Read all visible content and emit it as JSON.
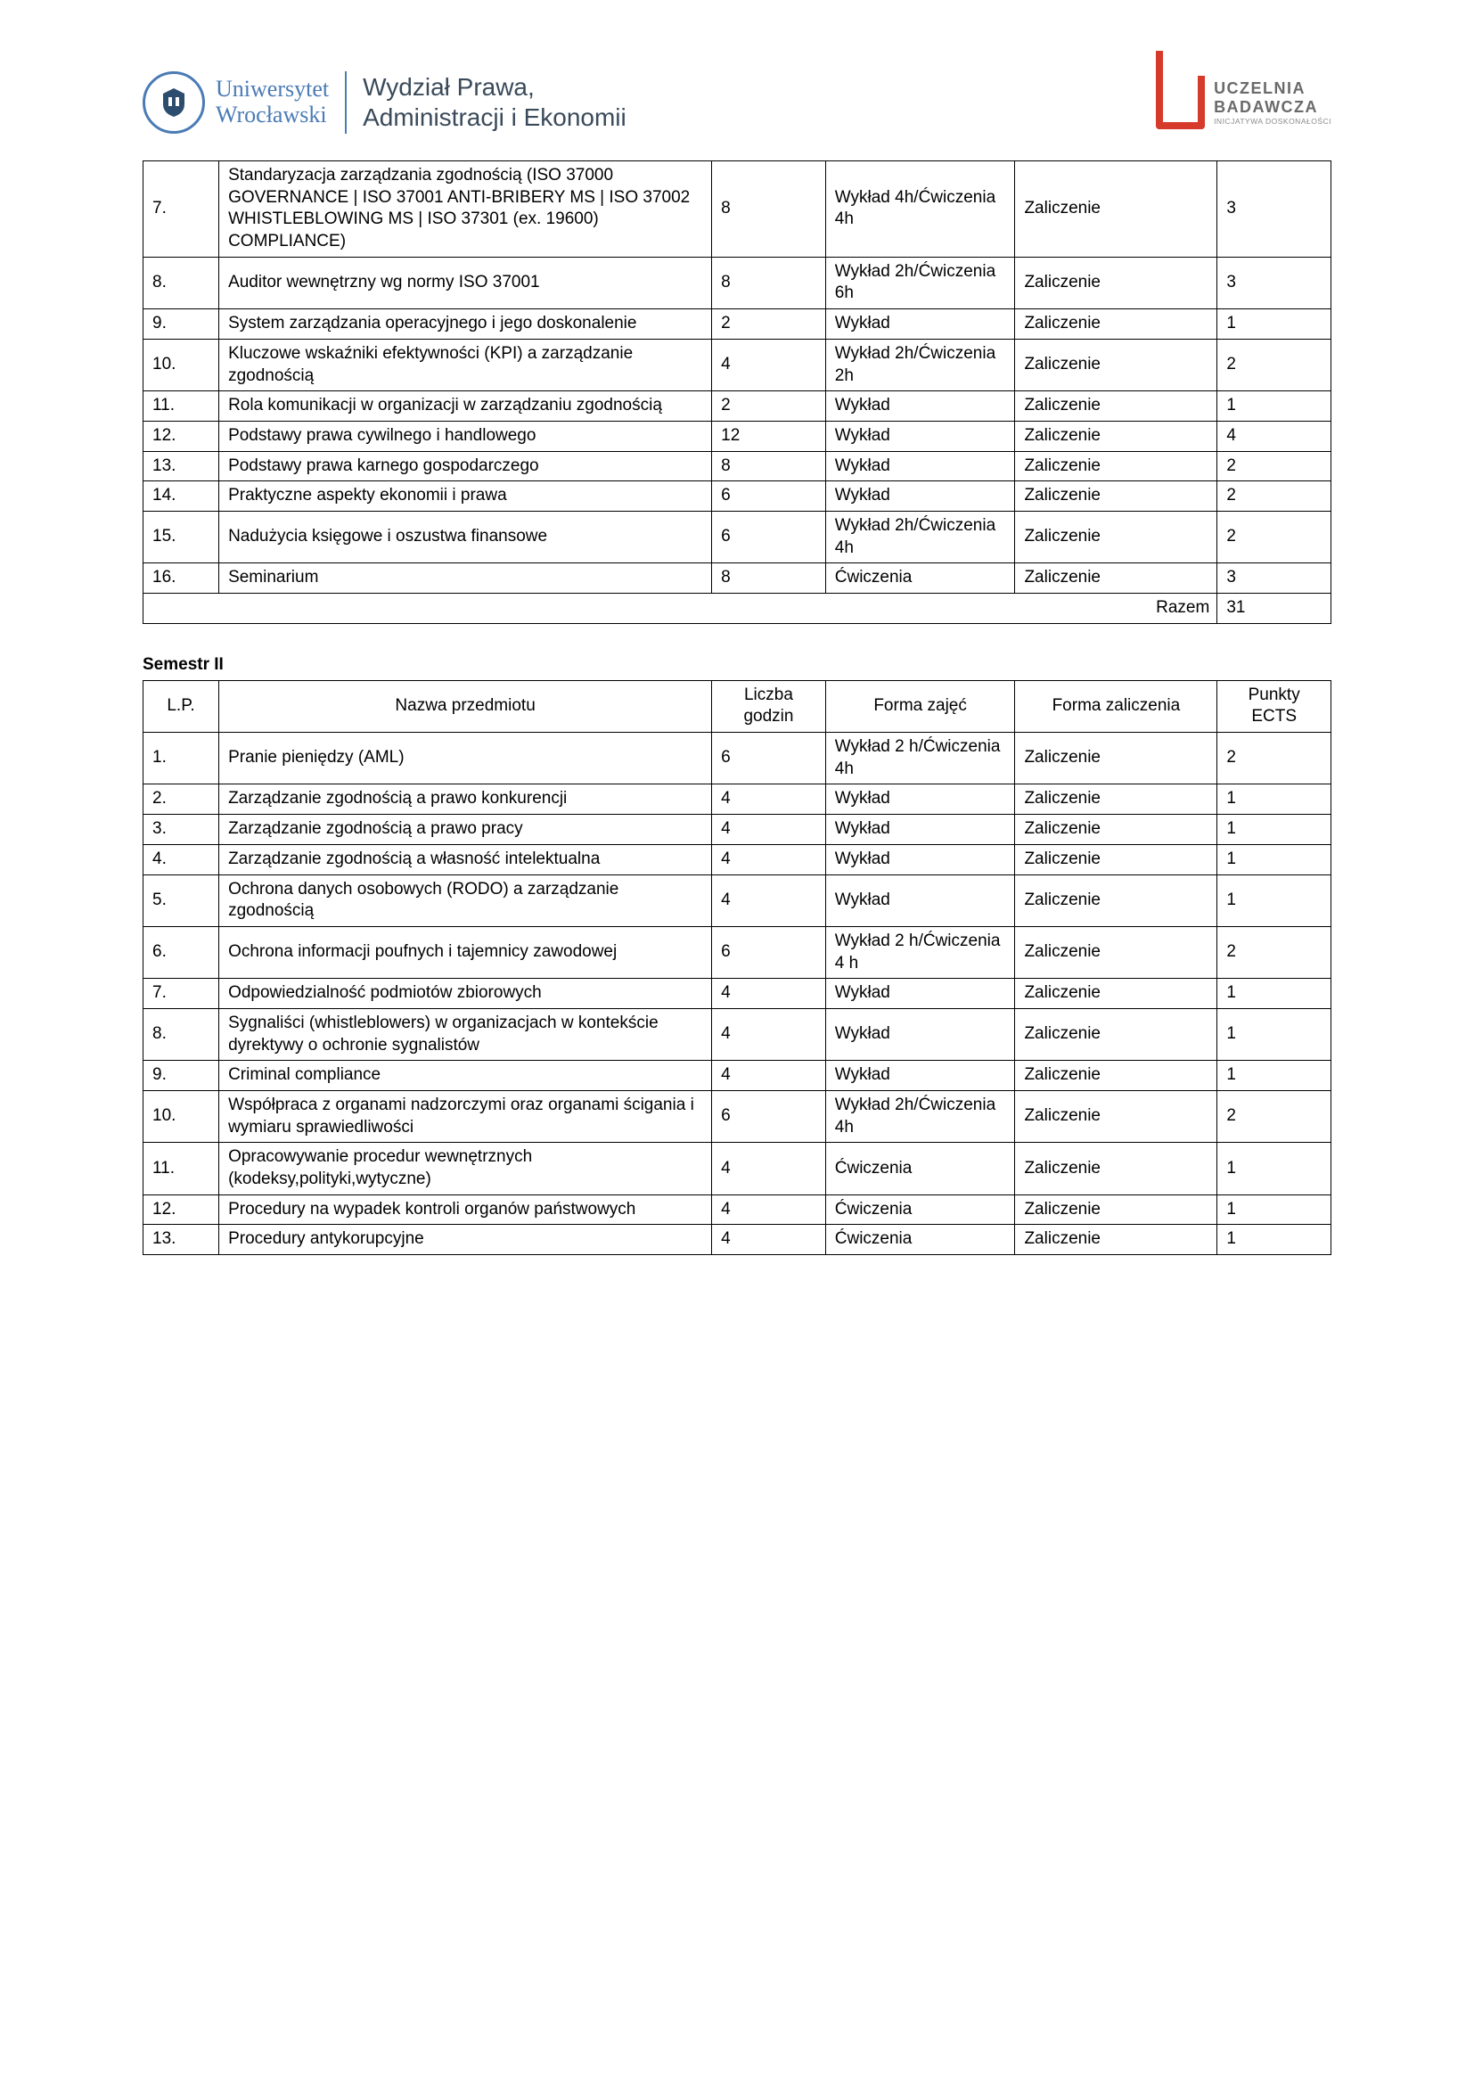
{
  "header": {
    "uni_line1": "Uniwersytet",
    "uni_line2": "Wrocławski",
    "dept_line1": "Wydział Prawa,",
    "dept_line2": "Administracji i Ekonomii",
    "badge_l1": "UCZELNIA",
    "badge_l2": "BADAWCZA",
    "badge_l3": "INICJATYWA DOSKONAŁOŚCI"
  },
  "table1": {
    "rows": [
      {
        "lp": "7.",
        "name": "Standaryzacja zarządzania zgodnością (ISO 37000 GOVERNANCE | ISO 37001 ANTI-BRIBERY MS | ISO 37002 WHISTLEBLOWING MS | ISO 37301 (ex. 19600) COMPLIANCE)",
        "godz": "8",
        "forma": "Wykład 4h/Ćwiczenia 4h",
        "zal": "Zaliczenie",
        "ects": "3"
      },
      {
        "lp": "8.",
        "name": "Auditor wewnętrzny wg normy ISO 37001",
        "godz": "8",
        "forma": "Wykład 2h/Ćwiczenia 6h",
        "zal": "Zaliczenie",
        "ects": "3"
      },
      {
        "lp": "9.",
        "name": "System zarządzania operacyjnego i jego doskonalenie",
        "godz": "2",
        "forma": "Wykład",
        "zal": "Zaliczenie",
        "ects": "1"
      },
      {
        "lp": "10.",
        "name": "Kluczowe wskaźniki efektywności (KPI) a zarządzanie zgodnością",
        "godz": "4",
        "forma": "Wykład 2h/Ćwiczenia 2h",
        "zal": "Zaliczenie",
        "ects": "2"
      },
      {
        "lp": "11.",
        "name": "Rola komunikacji w organizacji w zarządzaniu zgodnością",
        "godz": "2",
        "forma": "Wykład",
        "zal": "Zaliczenie",
        "ects": "1"
      },
      {
        "lp": "12.",
        "name": "Podstawy prawa cywilnego i handlowego",
        "godz": "12",
        "forma": "Wykład",
        "zal": "Zaliczenie",
        "ects": "4"
      },
      {
        "lp": "13.",
        "name": "Podstawy prawa karnego gospodarczego",
        "godz": "8",
        "forma": "Wykład",
        "zal": "Zaliczenie",
        "ects": "2"
      },
      {
        "lp": "14.",
        "name": "Praktyczne aspekty ekonomii i prawa",
        "godz": "6",
        "forma": "Wykład",
        "zal": "Zaliczenie",
        "ects": "2"
      },
      {
        "lp": "15.",
        "name": "Nadużycia księgowe i oszustwa finansowe",
        "godz": "6",
        "forma": "Wykład 2h/Ćwiczenia 4h",
        "zal": "Zaliczenie",
        "ects": "2"
      },
      {
        "lp": "16.",
        "name": "Seminarium",
        "godz": "8",
        "forma": "Ćwiczenia",
        "zal": "Zaliczenie",
        "ects": "3"
      }
    ],
    "razem_label": "Razem",
    "razem_value": "31"
  },
  "semester2_title": "Semestr II",
  "table2": {
    "headers": {
      "lp": "L.P.",
      "name": "Nazwa przedmiotu",
      "godz": "Liczba godzin",
      "forma": "Forma zajęć",
      "zal": "Forma zaliczenia",
      "ects": "Punkty ECTS"
    },
    "rows": [
      {
        "lp": "1.",
        "name": "Pranie pieniędzy (AML)",
        "godz": "6",
        "forma": "Wykład 2 h/Ćwiczenia 4h",
        "zal": "Zaliczenie",
        "ects": "2"
      },
      {
        "lp": "2.",
        "name": "Zarządzanie zgodnością a prawo konkurencji",
        "godz": "4",
        "forma": "Wykład",
        "zal": "Zaliczenie",
        "ects": "1"
      },
      {
        "lp": "3.",
        "name": "Zarządzanie zgodnością a prawo pracy",
        "godz": "4",
        "forma": "Wykład",
        "zal": "Zaliczenie",
        "ects": "1"
      },
      {
        "lp": "4.",
        "name": "Zarządzanie zgodnością a własność intelektualna",
        "godz": "4",
        "forma": "Wykład",
        "zal": "Zaliczenie",
        "ects": "1"
      },
      {
        "lp": "5.",
        "name": "Ochrona danych osobowych (RODO) a zarządzanie zgodnością",
        "godz": "4",
        "forma": "Wykład",
        "zal": "Zaliczenie",
        "ects": "1"
      },
      {
        "lp": "6.",
        "name": "Ochrona informacji poufnych i tajemnicy zawodowej",
        "godz": "6",
        "forma": "Wykład 2 h/Ćwiczenia 4 h",
        "zal": "Zaliczenie",
        "ects": "2"
      },
      {
        "lp": "7.",
        "name": "Odpowiedzialność podmiotów zbiorowych",
        "godz": "4",
        "forma": "Wykład",
        "zal": "Zaliczenie",
        "ects": "1"
      },
      {
        "lp": "8.",
        "name": "Sygnaliści (whistleblowers) w organizacjach w kontekście dyrektywy o ochronie sygnalistów",
        "godz": "4",
        "forma": "Wykład",
        "zal": "Zaliczenie",
        "ects": "1"
      },
      {
        "lp": "9.",
        "name": "Criminal compliance",
        "godz": "4",
        "forma": "Wykład",
        "zal": "Zaliczenie",
        "ects": "1"
      },
      {
        "lp": "10.",
        "name": "Współpraca z organami nadzorczymi oraz organami ścigania i wymiaru sprawiedliwości",
        "godz": "6",
        "forma": "Wykład 2h/Ćwiczenia 4h",
        "zal": "Zaliczenie",
        "ects": "2"
      },
      {
        "lp": "11.",
        "name": "Opracowywanie procedur wewnętrznych (kodeksy,polityki,wytyczne)",
        "godz": "4",
        "forma": "Ćwiczenia",
        "zal": "Zaliczenie",
        "ects": "1"
      },
      {
        "lp": "12.",
        "name": "Procedury na wypadek kontroli organów państwowych",
        "godz": "4",
        "forma": "Ćwiczenia",
        "zal": "Zaliczenie",
        "ects": "1"
      },
      {
        "lp": "13.",
        "name": "Procedury antykorupcyjne",
        "godz": "4",
        "forma": "Ćwiczenia",
        "zal": "Zaliczenie",
        "ects": "1"
      }
    ]
  }
}
